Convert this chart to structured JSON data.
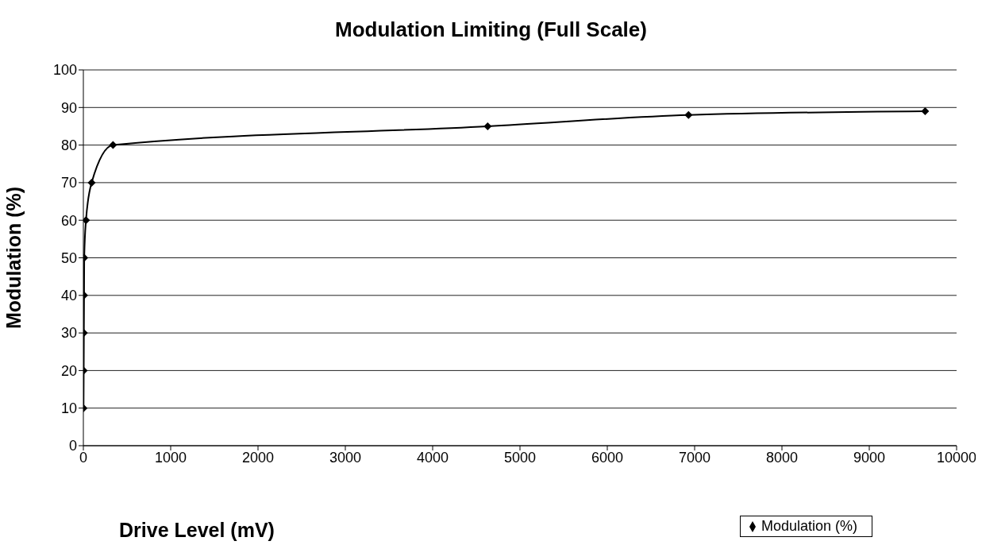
{
  "chart_data": {
    "type": "line",
    "title": "Modulation Limiting (Full Scale)",
    "xlabel": "Drive Level (mV)",
    "ylabel": "Modulation (%)",
    "x": [
      2,
      4,
      6,
      8,
      10,
      30,
      95,
      340,
      4630,
      6930,
      9640
    ],
    "series": [
      {
        "name": "Modulation (%)",
        "color": "#000000",
        "values": [
          10,
          20,
          30,
          40,
          50,
          60,
          70,
          80,
          85,
          88,
          89
        ]
      }
    ],
    "xlim": [
      0,
      10000
    ],
    "xticks": [
      0,
      1000,
      2000,
      3000,
      4000,
      5000,
      6000,
      7000,
      8000,
      9000,
      10000
    ],
    "ylim": [
      0,
      100
    ],
    "yticks": [
      0,
      10,
      20,
      30,
      40,
      50,
      60,
      70,
      80,
      90,
      100
    ],
    "grid": "y",
    "legend": "bottom right",
    "marker": "diamond",
    "line_style": "solid"
  }
}
